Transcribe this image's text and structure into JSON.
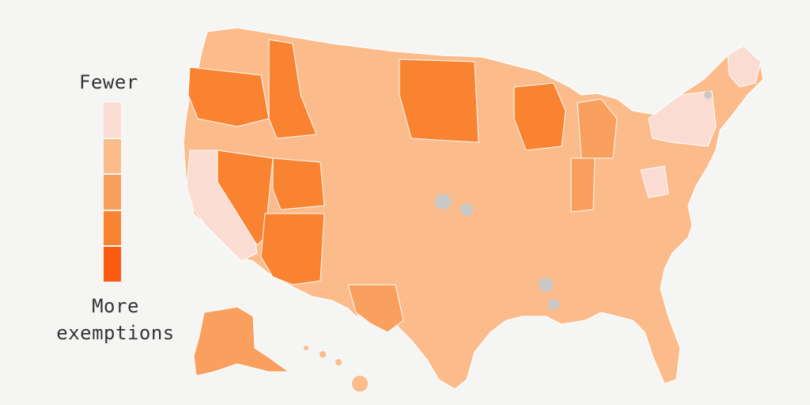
{
  "legend": {
    "top_label": "Fewer",
    "bottom_label_line1": "More",
    "bottom_label_line2": "exemptions",
    "scale": [
      {
        "level": 1,
        "color": "#fbdcd2"
      },
      {
        "level": 2,
        "color": "#fbbb8a"
      },
      {
        "level": 3,
        "color": "#f9a05e"
      },
      {
        "level": 4,
        "color": "#f98330"
      },
      {
        "level": 5,
        "color": "#fb5b0f"
      }
    ]
  },
  "colors": {
    "background": "#f5f5f4",
    "no_data": "#c8c8c8",
    "border": "#ffffff"
  },
  "regions": [
    {
      "name": "contiguous-us",
      "level": 2
    },
    {
      "name": "alaska",
      "level": 3
    },
    {
      "name": "hawaii",
      "level": 2
    },
    {
      "name": "pacific-northwest",
      "level": 4
    },
    {
      "name": "idaho",
      "level": 4
    },
    {
      "name": "nevada",
      "level": 4
    },
    {
      "name": "arizona",
      "level": 4
    },
    {
      "name": "utah",
      "level": 4
    },
    {
      "name": "california",
      "level": 1
    },
    {
      "name": "new-york",
      "level": 1
    },
    {
      "name": "maine",
      "level": 1
    },
    {
      "name": "west-virginia",
      "level": 1
    },
    {
      "name": "wisconsin",
      "level": 4
    },
    {
      "name": "north-dakota-east",
      "level": 4
    },
    {
      "name": "michigan",
      "level": 3
    },
    {
      "name": "indiana",
      "level": 3
    },
    {
      "name": "texas-west",
      "level": 3
    }
  ]
}
